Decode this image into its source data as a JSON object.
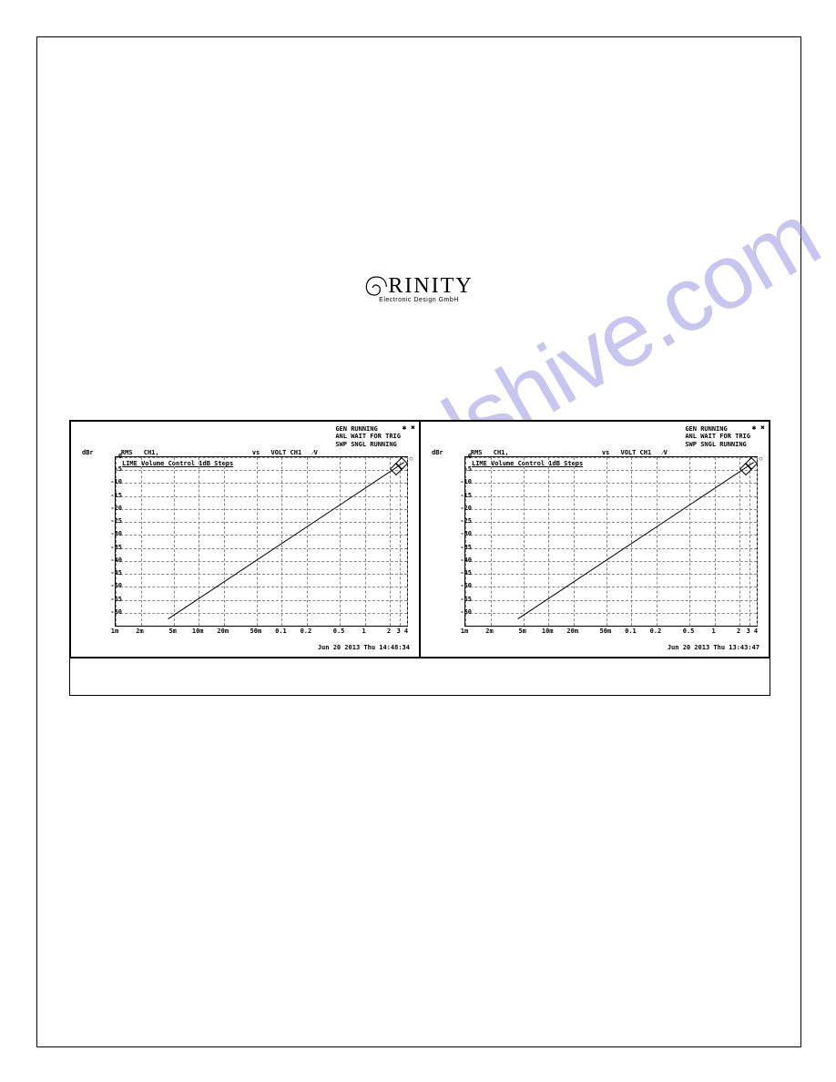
{
  "logo": {
    "main": "RINITY",
    "sub": "Electronic Design GmbH"
  },
  "watermark": "manualshive.com",
  "charts": [
    {
      "status_lines": [
        "GEN RUNNING",
        "ANL WAIT FOR TRIG",
        "SWP SNGL RUNNING"
      ],
      "corner": "✱ ✖",
      "header_unit": "dBr",
      "header_meas": "RMS",
      "header_ch": "CH1,",
      "header_vs": "vs",
      "header_x": "VOLT CH1",
      "header_scale": "⁄V",
      "title": "LIME Volume Control 1dB Steps",
      "timestamp": "Jun 20 2013 Thu 14:48:34",
      "circle": "○",
      "ylim": [
        -65,
        0
      ],
      "y_ticks": [
        0,
        -5,
        -10,
        -15,
        -20,
        -25,
        -30,
        -35,
        -40,
        -45,
        -50,
        -55,
        -60
      ],
      "x_ticks": [
        "1m",
        "2m",
        "5m",
        "10m",
        "20m",
        "50m",
        "0.1",
        "0.2",
        "0.5",
        "1",
        "2",
        "3",
        "4"
      ],
      "x_positions": [
        0.0,
        0.086,
        0.199,
        0.285,
        0.371,
        0.484,
        0.57,
        0.656,
        0.769,
        0.855,
        0.941,
        0.974,
        1.0
      ],
      "line_start": [
        0.18,
        0.96
      ],
      "line_end": [
        0.99,
        0.03
      ],
      "line_color": "#000000",
      "grid_color": "#888888",
      "background": "#ffffff"
    },
    {
      "status_lines": [
        "GEN RUNNING",
        "ANL WAIT FOR TRIG",
        "SWP SNGL RUNNING"
      ],
      "corner": "✱ ✖",
      "header_unit": "dBr",
      "header_meas": "RMS",
      "header_ch": "CH1,",
      "header_vs": "vs",
      "header_x": "VOLT CH1",
      "header_scale": "⁄V",
      "title": "LIME Volume Control 1dB Steps",
      "timestamp": "Jun 20 2013 Thu 13:43:47",
      "circle": "○",
      "ylim": [
        -65,
        0
      ],
      "y_ticks": [
        0,
        -5,
        -10,
        -15,
        -20,
        -25,
        -30,
        -35,
        -40,
        -45,
        -50,
        -55,
        -60
      ],
      "x_ticks": [
        "1m",
        "2m",
        "5m",
        "10m",
        "20m",
        "50m",
        "0.1",
        "0.2",
        "0.5",
        "1",
        "2",
        "3",
        "4"
      ],
      "x_positions": [
        0.0,
        0.086,
        0.199,
        0.285,
        0.371,
        0.484,
        0.57,
        0.656,
        0.769,
        0.855,
        0.941,
        0.974,
        1.0
      ],
      "line_start": [
        0.18,
        0.96
      ],
      "line_end": [
        0.99,
        0.03
      ],
      "line_color": "#000000",
      "grid_color": "#888888",
      "background": "#ffffff"
    }
  ]
}
